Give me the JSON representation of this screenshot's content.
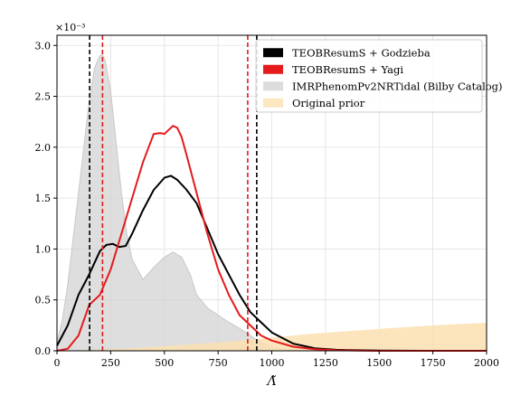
{
  "chart_data": {
    "type": "line",
    "title": "",
    "xlabel": "Λ̃",
    "ylabel": "",
    "y_scale_label": "×10⁻³",
    "xlim": [
      0,
      2000
    ],
    "ylim": [
      0,
      3.1
    ],
    "xticks": [
      0,
      250,
      500,
      750,
      1000,
      1250,
      1500,
      1750,
      2000
    ],
    "xtick_labels": [
      "0",
      "250",
      "500",
      "750",
      "1000",
      "1250",
      "1500",
      "1750",
      "2000"
    ],
    "yticks": [
      0.0,
      0.5,
      1.0,
      1.5,
      2.0,
      2.5,
      3.0
    ],
    "ytick_labels": [
      "0.0",
      "0.5",
      "1.0",
      "1.5",
      "2.0",
      "2.5",
      "3.0"
    ],
    "grid": true,
    "legend_position": "top-right",
    "colors": {
      "godzieba": "#000000",
      "yagi": "#e41a1c",
      "imrphenom": "#d3d3d3",
      "prior": "#fce0b0"
    },
    "series": [
      {
        "name": "TEOBResumS + Godzieba",
        "key": "godzieba",
        "style": "line",
        "x": [
          0,
          50,
          100,
          150,
          200,
          230,
          260,
          290,
          320,
          350,
          400,
          450,
          500,
          530,
          560,
          600,
          650,
          700,
          750,
          800,
          850,
          900,
          950,
          1000,
          1100,
          1200,
          1300,
          1400,
          1500,
          1700,
          2000
        ],
        "y": [
          0.05,
          0.25,
          0.55,
          0.75,
          0.98,
          1.04,
          1.05,
          1.02,
          1.03,
          1.15,
          1.38,
          1.58,
          1.7,
          1.72,
          1.68,
          1.59,
          1.45,
          1.2,
          0.95,
          0.75,
          0.55,
          0.38,
          0.28,
          0.18,
          0.07,
          0.025,
          0.01,
          0.005,
          0.002,
          0.0,
          0.0
        ]
      },
      {
        "name": "TEOBResumS + Yagi",
        "key": "yagi",
        "style": "line",
        "x": [
          0,
          50,
          100,
          150,
          200,
          250,
          300,
          350,
          400,
          450,
          480,
          500,
          520,
          540,
          560,
          580,
          600,
          650,
          700,
          750,
          800,
          850,
          900,
          950,
          1000,
          1100,
          1200,
          1300,
          1400,
          1500,
          2000
        ],
        "y": [
          0.0,
          0.02,
          0.15,
          0.45,
          0.55,
          0.8,
          1.15,
          1.5,
          1.85,
          2.13,
          2.14,
          2.13,
          2.17,
          2.21,
          2.19,
          2.1,
          1.95,
          1.55,
          1.15,
          0.8,
          0.55,
          0.35,
          0.25,
          0.15,
          0.1,
          0.04,
          0.015,
          0.005,
          0.002,
          0.0,
          0.0
        ]
      },
      {
        "name": "IMRPhenomPv2NRTidal (Bilby Catalog)",
        "key": "imrphenom",
        "style": "area",
        "x": [
          0,
          25,
          50,
          75,
          100,
          125,
          150,
          175,
          200,
          212,
          225,
          250,
          275,
          300,
          325,
          350,
          400,
          450,
          500,
          540,
          580,
          620,
          650,
          700,
          750,
          800,
          850,
          900,
          950,
          1000,
          1050,
          1100,
          1200,
          2000
        ],
        "y": [
          0.08,
          0.3,
          0.65,
          1.1,
          1.55,
          2.0,
          2.45,
          2.78,
          2.9,
          2.91,
          2.85,
          2.55,
          2.05,
          1.55,
          1.15,
          0.9,
          0.7,
          0.82,
          0.92,
          0.97,
          0.92,
          0.75,
          0.55,
          0.42,
          0.35,
          0.28,
          0.22,
          0.15,
          0.08,
          0.04,
          0.02,
          0.01,
          0.002,
          0.0
        ]
      },
      {
        "name": "Original prior",
        "key": "prior",
        "style": "area",
        "x": [
          0,
          200,
          400,
          600,
          800,
          1000,
          1200,
          1400,
          1600,
          1800,
          2000
        ],
        "y": [
          0.0,
          0.01,
          0.03,
          0.06,
          0.09,
          0.13,
          0.17,
          0.2,
          0.23,
          0.255,
          0.275
        ]
      }
    ],
    "vlines": [
      {
        "x": 152,
        "key": "godzieba"
      },
      {
        "x": 930,
        "key": "godzieba"
      },
      {
        "x": 212,
        "key": "yagi"
      },
      {
        "x": 888,
        "key": "yagi"
      }
    ]
  }
}
